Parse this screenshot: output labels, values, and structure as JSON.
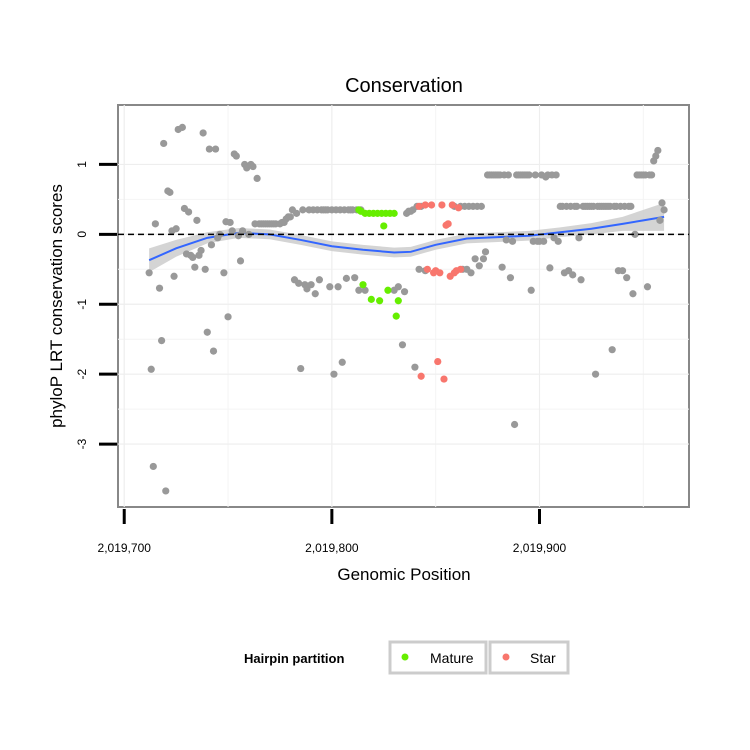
{
  "chart_data": {
    "type": "scatter",
    "title": "Conservation",
    "xlabel": "Genomic Position",
    "ylabel": "phyloP LRT conservation scores",
    "xlim": [
      2019697,
      2019972
    ],
    "ylim": [
      -3.9,
      1.85
    ],
    "x_ticks": [
      2019700,
      2019800,
      2019900
    ],
    "x_tick_labels": [
      "2,019,700",
      "2,019,800",
      "2,019,900"
    ],
    "y_ticks": [
      -3,
      -2,
      -1,
      0,
      1
    ],
    "y_tick_labels": [
      "-3",
      "-2",
      "-1",
      "0",
      "1"
    ],
    "grid": true,
    "reference_line": 0,
    "legend": {
      "title": "Hairpin partition",
      "placement": "bottom",
      "entries": [
        {
          "label": "Mature",
          "color": "#66ee00"
        },
        {
          "label": "Star",
          "color": "#f8766d"
        }
      ]
    },
    "colors": {
      "other": "#999999",
      "mature": "#66ee00",
      "star": "#f8766d",
      "smooth": "#3366ff",
      "ribbon": "#cccccc"
    },
    "series": [
      {
        "name": "",
        "points": [
          [
            2019712,
            -0.55
          ],
          [
            2019713,
            -1.93
          ],
          [
            2019714,
            -3.32
          ],
          [
            2019715,
            0.15
          ],
          [
            2019717,
            -0.77
          ],
          [
            2019718,
            -1.52
          ],
          [
            2019719,
            1.3
          ],
          [
            2019720,
            -3.67
          ],
          [
            2019721,
            0.62
          ],
          [
            2019722,
            0.6
          ],
          [
            2019723,
            0.05
          ],
          [
            2019724,
            -0.6
          ],
          [
            2019725,
            0.08
          ],
          [
            2019726,
            1.5
          ],
          [
            2019728,
            1.53
          ],
          [
            2019729,
            0.37
          ],
          [
            2019730,
            -0.28
          ],
          [
            2019731,
            0.32
          ],
          [
            2019732,
            -0.3
          ],
          [
            2019733,
            -0.33
          ],
          [
            2019734,
            -0.47
          ],
          [
            2019735,
            0.2
          ],
          [
            2019736,
            -0.3
          ],
          [
            2019737,
            -0.23
          ],
          [
            2019738,
            1.45
          ],
          [
            2019739,
            -0.5
          ],
          [
            2019740,
            -1.4
          ],
          [
            2019741,
            1.22
          ],
          [
            2019742,
            -0.15
          ],
          [
            2019743,
            -1.67
          ],
          [
            2019744,
            1.22
          ],
          [
            2019745,
            -0.05
          ],
          [
            2019746,
            0.0
          ],
          [
            2019748,
            -0.55
          ],
          [
            2019749,
            0.18
          ],
          [
            2019750,
            -1.18
          ],
          [
            2019751,
            0.17
          ],
          [
            2019752,
            0.05
          ],
          [
            2019753,
            1.15
          ],
          [
            2019754,
            1.12
          ],
          [
            2019755,
            -0.02
          ],
          [
            2019756,
            -0.38
          ],
          [
            2019757,
            0.05
          ],
          [
            2019758,
            1.0
          ],
          [
            2019759,
            0.95
          ],
          [
            2019760,
            0.0
          ],
          [
            2019761,
            1.0
          ],
          [
            2019762,
            0.97
          ],
          [
            2019763,
            0.15
          ],
          [
            2019764,
            0.8
          ],
          [
            2019765,
            0.15
          ],
          [
            2019766,
            0.15
          ],
          [
            2019767,
            0.15
          ],
          [
            2019768,
            0.15
          ],
          [
            2019769,
            0.15
          ],
          [
            2019770,
            0.15
          ],
          [
            2019771,
            0.15
          ],
          [
            2019772,
            0.15
          ],
          [
            2019773,
            0.15
          ],
          [
            2019775,
            0.15
          ],
          [
            2019776,
            0.17
          ],
          [
            2019777,
            0.17
          ],
          [
            2019778,
            0.22
          ],
          [
            2019779,
            0.25
          ],
          [
            2019780,
            0.25
          ],
          [
            2019781,
            0.35
          ],
          [
            2019782,
            -0.65
          ],
          [
            2019783,
            0.3
          ],
          [
            2019784,
            -0.7
          ],
          [
            2019785,
            -1.92
          ],
          [
            2019786,
            0.35
          ],
          [
            2019787,
            -0.72
          ],
          [
            2019788,
            -0.78
          ],
          [
            2019789,
            0.35
          ],
          [
            2019790,
            -0.72
          ],
          [
            2019791,
            0.35
          ],
          [
            2019792,
            -0.85
          ],
          [
            2019793,
            0.35
          ],
          [
            2019794,
            -0.65
          ],
          [
            2019795,
            0.35
          ],
          [
            2019796,
            0.35
          ],
          [
            2019797,
            0.35
          ],
          [
            2019798,
            0.35
          ],
          [
            2019799,
            -0.75
          ],
          [
            2019800,
            0.35
          ],
          [
            2019801,
            -2.0
          ],
          [
            2019802,
            0.35
          ],
          [
            2019803,
            -0.75
          ],
          [
            2019804,
            0.35
          ],
          [
            2019805,
            -1.83
          ],
          [
            2019806,
            0.35
          ],
          [
            2019807,
            -0.63
          ],
          [
            2019808,
            0.35
          ],
          [
            2019809,
            0.35
          ],
          [
            2019810,
            0.35
          ],
          [
            2019811,
            -0.62
          ],
          [
            2019812,
            0.35
          ],
          [
            2019813,
            -0.8
          ],
          [
            2019814,
            0.35
          ],
          [
            2019816,
            -0.8
          ],
          [
            2019830,
            -0.8
          ],
          [
            2019832,
            -0.75
          ],
          [
            2019834,
            -1.58
          ],
          [
            2019835,
            -0.82
          ],
          [
            2019836,
            0.3
          ],
          [
            2019837,
            0.33
          ],
          [
            2019838,
            0.33
          ],
          [
            2019839,
            0.35
          ],
          [
            2019840,
            -1.9
          ],
          [
            2019841,
            0.4
          ],
          [
            2019842,
            -0.5
          ],
          [
            2019843,
            0.4
          ],
          [
            2019845,
            -0.52
          ],
          [
            2019859,
            0.4
          ],
          [
            2019862,
            0.4
          ],
          [
            2019863,
            -0.5
          ],
          [
            2019864,
            0.4
          ],
          [
            2019865,
            -0.5
          ],
          [
            2019866,
            0.4
          ],
          [
            2019867,
            -0.55
          ],
          [
            2019868,
            0.4
          ],
          [
            2019869,
            -0.35
          ],
          [
            2019870,
            0.4
          ],
          [
            2019871,
            -0.45
          ],
          [
            2019872,
            0.4
          ],
          [
            2019873,
            -0.35
          ],
          [
            2019874,
            -0.25
          ],
          [
            2019875,
            0.85
          ],
          [
            2019876,
            0.85
          ],
          [
            2019877,
            0.85
          ],
          [
            2019878,
            0.85
          ],
          [
            2019879,
            0.85
          ],
          [
            2019880,
            0.85
          ],
          [
            2019881,
            0.85
          ],
          [
            2019882,
            -0.47
          ],
          [
            2019883,
            0.85
          ],
          [
            2019884,
            -0.08
          ],
          [
            2019885,
            0.85
          ],
          [
            2019886,
            -0.62
          ],
          [
            2019887,
            -0.1
          ],
          [
            2019888,
            -2.72
          ],
          [
            2019889,
            0.85
          ],
          [
            2019890,
            0.85
          ],
          [
            2019891,
            0.85
          ],
          [
            2019892,
            0.85
          ],
          [
            2019893,
            0.85
          ],
          [
            2019894,
            0.85
          ],
          [
            2019895,
            0.85
          ],
          [
            2019896,
            -0.8
          ],
          [
            2019897,
            -0.1
          ],
          [
            2019898,
            0.85
          ],
          [
            2019899,
            -0.1
          ],
          [
            2019900,
            -0.1
          ],
          [
            2019901,
            0.85
          ],
          [
            2019902,
            -0.1
          ],
          [
            2019903,
            0.82
          ],
          [
            2019904,
            0.85
          ],
          [
            2019905,
            -0.48
          ],
          [
            2019906,
            0.85
          ],
          [
            2019907,
            -0.05
          ],
          [
            2019908,
            0.85
          ],
          [
            2019909,
            -0.1
          ],
          [
            2019910,
            0.4
          ],
          [
            2019911,
            0.4
          ],
          [
            2019912,
            -0.55
          ],
          [
            2019913,
            0.4
          ],
          [
            2019914,
            -0.52
          ],
          [
            2019915,
            0.4
          ],
          [
            2019916,
            -0.58
          ],
          [
            2019917,
            0.4
          ],
          [
            2019918,
            0.4
          ],
          [
            2019919,
            -0.05
          ],
          [
            2019920,
            -0.65
          ],
          [
            2019921,
            0.4
          ],
          [
            2019922,
            0.4
          ],
          [
            2019923,
            0.4
          ],
          [
            2019924,
            0.4
          ],
          [
            2019925,
            0.4
          ],
          [
            2019926,
            0.4
          ],
          [
            2019927,
            -2.0
          ],
          [
            2019928,
            0.4
          ],
          [
            2019929,
            0.4
          ],
          [
            2019930,
            0.4
          ],
          [
            2019931,
            0.4
          ],
          [
            2019932,
            0.4
          ],
          [
            2019933,
            0.4
          ],
          [
            2019934,
            0.4
          ],
          [
            2019935,
            -1.65
          ],
          [
            2019936,
            0.4
          ],
          [
            2019937,
            0.4
          ],
          [
            2019938,
            -0.52
          ],
          [
            2019939,
            0.4
          ],
          [
            2019940,
            -0.52
          ],
          [
            2019941,
            0.4
          ],
          [
            2019942,
            -0.62
          ],
          [
            2019943,
            0.4
          ],
          [
            2019944,
            0.4
          ],
          [
            2019945,
            -0.85
          ],
          [
            2019946,
            0.0
          ],
          [
            2019947,
            0.85
          ],
          [
            2019948,
            0.85
          ],
          [
            2019949,
            0.85
          ],
          [
            2019950,
            0.85
          ],
          [
            2019951,
            0.85
          ],
          [
            2019952,
            -0.75
          ],
          [
            2019953,
            0.85
          ],
          [
            2019954,
            0.85
          ],
          [
            2019955,
            1.05
          ],
          [
            2019956,
            1.12
          ],
          [
            2019957,
            1.2
          ],
          [
            2019958,
            0.2
          ],
          [
            2019959,
            0.45
          ],
          [
            2019960,
            0.35
          ]
        ]
      },
      {
        "name": "Mature",
        "points": [
          [
            2019813,
            0.35
          ],
          [
            2019814,
            0.33
          ],
          [
            2019815,
            -0.72
          ],
          [
            2019816,
            0.3
          ],
          [
            2019818,
            0.3
          ],
          [
            2019819,
            -0.93
          ],
          [
            2019820,
            0.3
          ],
          [
            2019822,
            0.3
          ],
          [
            2019823,
            -0.95
          ],
          [
            2019824,
            0.3
          ],
          [
            2019825,
            0.12
          ],
          [
            2019826,
            0.3
          ],
          [
            2019827,
            -0.8
          ],
          [
            2019828,
            0.3
          ],
          [
            2019830,
            0.3
          ],
          [
            2019831,
            -1.17
          ],
          [
            2019832,
            -0.95
          ]
        ]
      },
      {
        "name": "Star",
        "points": [
          [
            2019842,
            0.4
          ],
          [
            2019843,
            -2.03
          ],
          [
            2019845,
            0.42
          ],
          [
            2019846,
            -0.5
          ],
          [
            2019848,
            0.42
          ],
          [
            2019849,
            -0.55
          ],
          [
            2019850,
            -0.52
          ],
          [
            2019851,
            -1.82
          ],
          [
            2019852,
            -0.55
          ],
          [
            2019853,
            0.42
          ],
          [
            2019854,
            -2.07
          ],
          [
            2019855,
            0.13
          ],
          [
            2019856,
            0.15
          ],
          [
            2019857,
            -0.6
          ],
          [
            2019858,
            0.42
          ],
          [
            2019859,
            -0.55
          ],
          [
            2019860,
            -0.52
          ],
          [
            2019861,
            0.38
          ],
          [
            2019862,
            -0.5
          ]
        ]
      }
    ],
    "smooth": [
      [
        2019712,
        -0.37
      ],
      [
        2019725,
        -0.2
      ],
      [
        2019740,
        -0.05
      ],
      [
        2019755,
        0.02
      ],
      [
        2019770,
        0.0
      ],
      [
        2019785,
        -0.08
      ],
      [
        2019800,
        -0.17
      ],
      [
        2019815,
        -0.22
      ],
      [
        2019830,
        -0.26
      ],
      [
        2019838,
        -0.25
      ],
      [
        2019850,
        -0.15
      ],
      [
        2019865,
        -0.06
      ],
      [
        2019880,
        -0.04
      ],
      [
        2019895,
        -0.02
      ],
      [
        2019910,
        0.03
      ],
      [
        2019925,
        0.08
      ],
      [
        2019940,
        0.15
      ],
      [
        2019950,
        0.2
      ],
      [
        2019960,
        0.25
      ]
    ],
    "smooth_band": [
      0.17,
      0.12,
      0.08,
      0.07,
      0.07,
      0.07,
      0.07,
      0.07,
      0.07,
      0.07,
      0.07,
      0.07,
      0.07,
      0.07,
      0.07,
      0.08,
      0.1,
      0.15,
      0.2
    ]
  }
}
